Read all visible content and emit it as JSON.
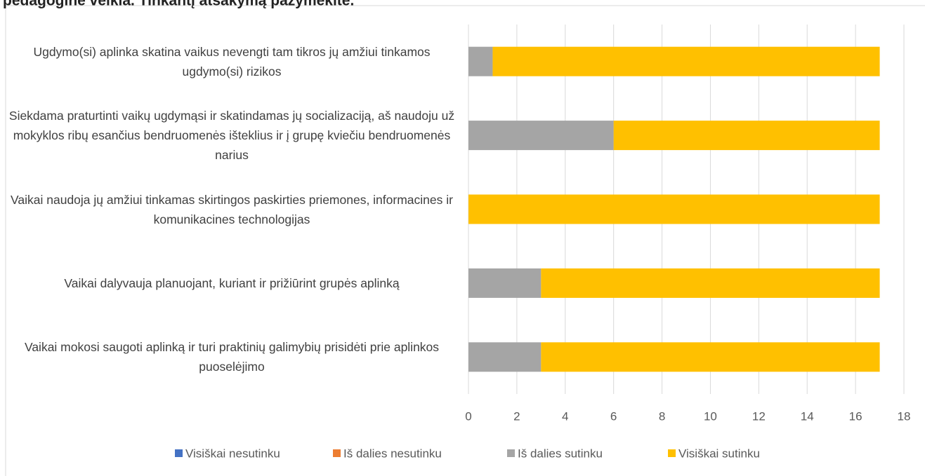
{
  "chart_data": {
    "type": "stacked_bar_horizontal",
    "title": "pedagoginė veikla. Tinkantį atsakymą pažymėkite.",
    "categories": [
      "Ugdymo(si) aplinka skatina vaikus nevengti tam tikros jų amžiui tinkamos ugdymo(si) rizikos",
      "Siekdama praturtinti vaikų ugdymąsi ir skatindamas jų socializaciją, aš naudoju už mokyklos ribų esančius bendruomenės išteklius ir į grupę kviečiu bendruomenės narius",
      "Vaikai naudoja jų amžiui tinkamas skirtingos paskirties priemones, informacines ir komunikacines technologijas",
      "Vaikai dalyvauja planuojant, kuriant ir prižiūrint grupės aplinką",
      "Vaikai mokosi saugoti aplinką ir turi praktinių galimybių prisidėti prie aplinkos puoselėjimo"
    ],
    "series": [
      {
        "name": "Visiškai nesutinku",
        "color": "#4472c4",
        "values": [
          0,
          0,
          0,
          0,
          0
        ]
      },
      {
        "name": "Iš dalies nesutinku",
        "color": "#ed7d31",
        "values": [
          0,
          0,
          0,
          0,
          0
        ]
      },
      {
        "name": "Iš dalies sutinku",
        "color": "#a5a5a5",
        "values": [
          1,
          6,
          0,
          3,
          3
        ]
      },
      {
        "name": "Visiškai sutinku",
        "color": "#ffc000",
        "values": [
          16,
          11,
          17,
          14,
          14
        ]
      }
    ],
    "xlim": [
      0,
      18
    ],
    "xticks": [
      0,
      2,
      4,
      6,
      8,
      10,
      12,
      14,
      16,
      18
    ],
    "grid": true,
    "legend": "bottom"
  }
}
